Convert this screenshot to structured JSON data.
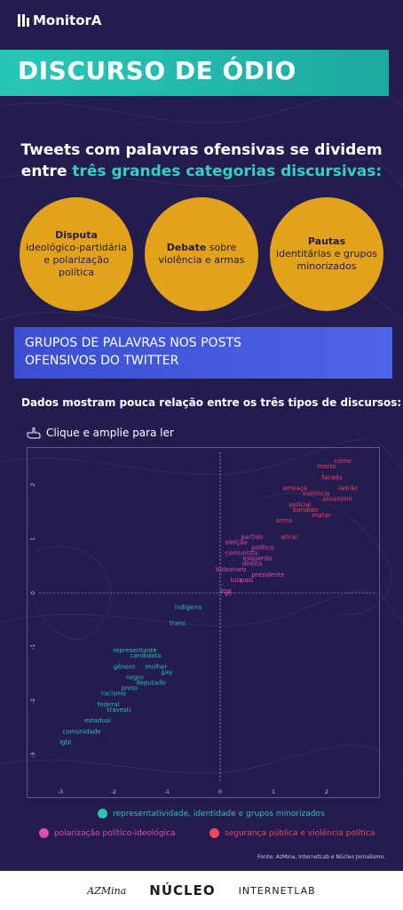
{
  "brand": {
    "name": "MonitorA"
  },
  "title": "DISCURSO DE ÓDIO",
  "lead": {
    "line1": "Tweets com palavras ofensivas se dividem",
    "line2_prefix": "entre ",
    "line2_highlight": "três grandes categorias discursivas:"
  },
  "categories": [
    {
      "bold": "Disputa",
      "rest": "ideológico-partidária e polarização política"
    },
    {
      "bold": "Debate",
      "rest": "sobre violência e armas"
    },
    {
      "bold": "Pautas",
      "rest": "identitárias e grupos minorizados"
    }
  ],
  "section": {
    "line1": "GRUPOS DE PALAVRAS NOS POSTS",
    "line2": "OFENSIVOS DO TWITTER"
  },
  "subhead": "Dados mostram pouca relação entre os três tipos de discursos:",
  "hint": {
    "icon": "hand-pointer-icon",
    "text": "Clique e amplie para ler"
  },
  "colors": {
    "teal": "#2bc4b0",
    "pink": "#e04fb0",
    "red": "#f0465a",
    "orange": "#e2a219",
    "bg": "#241b4f"
  },
  "chart_data": {
    "type": "scatter",
    "xlim": [
      -3.4,
      2.9
    ],
    "ylim": [
      -3.5,
      2.6
    ],
    "xticks": [
      -3,
      -2,
      -1,
      0,
      1,
      2
    ],
    "yticks": [
      -3,
      -2,
      -1,
      0,
      1,
      2
    ],
    "xlabel": "",
    "ylabel": "",
    "grid": false,
    "reference_lines": [
      0,
      0
    ],
    "series": [
      {
        "name": "representatividade, identidade e grupos minorizados",
        "color": "#2bc4b0",
        "points": [
          {
            "x": -1.6,
            "y": -1.6,
            "label": "negro"
          },
          {
            "x": -1.3,
            "y": -1.7,
            "label": "deputado"
          },
          {
            "x": -2.1,
            "y": -2.1,
            "label": "federal"
          },
          {
            "x": -1.7,
            "y": -1.8,
            "label": "preto"
          },
          {
            "x": -2.3,
            "y": -2.4,
            "label": "estadual"
          },
          {
            "x": -1.2,
            "y": -1.4,
            "label": "mulher"
          },
          {
            "x": -1.9,
            "y": -2.2,
            "label": "travesti"
          },
          {
            "x": -1.4,
            "y": -1.2,
            "label": "candidata"
          },
          {
            "x": -1.6,
            "y": -1.1,
            "label": "representante"
          },
          {
            "x": -0.8,
            "y": -0.6,
            "label": "trans"
          },
          {
            "x": -0.6,
            "y": -0.3,
            "label": "indígena"
          },
          {
            "x": -2.6,
            "y": -2.6,
            "label": "comunidade"
          },
          {
            "x": -2.9,
            "y": -2.8,
            "label": "lgbt"
          },
          {
            "x": -2.0,
            "y": -1.9,
            "label": "racismo"
          },
          {
            "x": -1.0,
            "y": -1.5,
            "label": "gay"
          },
          {
            "x": -1.8,
            "y": -1.4,
            "label": "gênero"
          }
        ]
      },
      {
        "name": "polarização político-ideológica",
        "color": "#e04fb0",
        "points": [
          {
            "x": 0.7,
            "y": 0.6,
            "label": "esquerda"
          },
          {
            "x": 0.6,
            "y": 0.5,
            "label": "direita"
          },
          {
            "x": 0.3,
            "y": 0.2,
            "label": "lula"
          },
          {
            "x": 0.1,
            "y": 0.0,
            "label": "ano"
          },
          {
            "x": 0.2,
            "y": 0.4,
            "label": "bolsonaro"
          },
          {
            "x": 0.5,
            "y": 0.2,
            "label": "país"
          },
          {
            "x": 0.8,
            "y": 0.8,
            "label": "político"
          },
          {
            "x": 0.4,
            "y": 0.7,
            "label": "comunista"
          },
          {
            "x": 0.9,
            "y": 0.3,
            "label": "presidente"
          },
          {
            "x": 0.3,
            "y": 0.9,
            "label": "eleição"
          },
          {
            "x": 0.6,
            "y": 1.0,
            "label": "partido"
          },
          {
            "x": 0.15,
            "y": -0.05,
            "label": "pt"
          }
        ]
      },
      {
        "name": "segurança pública e violência política",
        "color": "#f0465a",
        "points": [
          {
            "x": 1.5,
            "y": 1.6,
            "label": "policial"
          },
          {
            "x": 1.6,
            "y": 1.5,
            "label": "bandido"
          },
          {
            "x": 1.2,
            "y": 1.3,
            "label": "arma"
          },
          {
            "x": 1.8,
            "y": 1.8,
            "label": "violência"
          },
          {
            "x": 2.1,
            "y": 2.1,
            "label": "facada"
          },
          {
            "x": 2.3,
            "y": 2.4,
            "label": "crime"
          },
          {
            "x": 1.9,
            "y": 1.4,
            "label": "matar"
          },
          {
            "x": 2.0,
            "y": 2.3,
            "label": "morte"
          },
          {
            "x": 1.4,
            "y": 1.9,
            "label": "ameaça"
          },
          {
            "x": 2.4,
            "y": 1.9,
            "label": "ladrão"
          },
          {
            "x": 1.3,
            "y": 1.0,
            "label": "atirar"
          },
          {
            "x": 2.2,
            "y": 1.7,
            "label": "assassino"
          }
        ]
      }
    ]
  },
  "source": "Fonte: AzMina, InternetLab e Núcleo Jornalismo.",
  "footer": {
    "partner1": "AZMina",
    "partner2": "NÚCLEO",
    "partner3": "INTERNETLAB"
  }
}
